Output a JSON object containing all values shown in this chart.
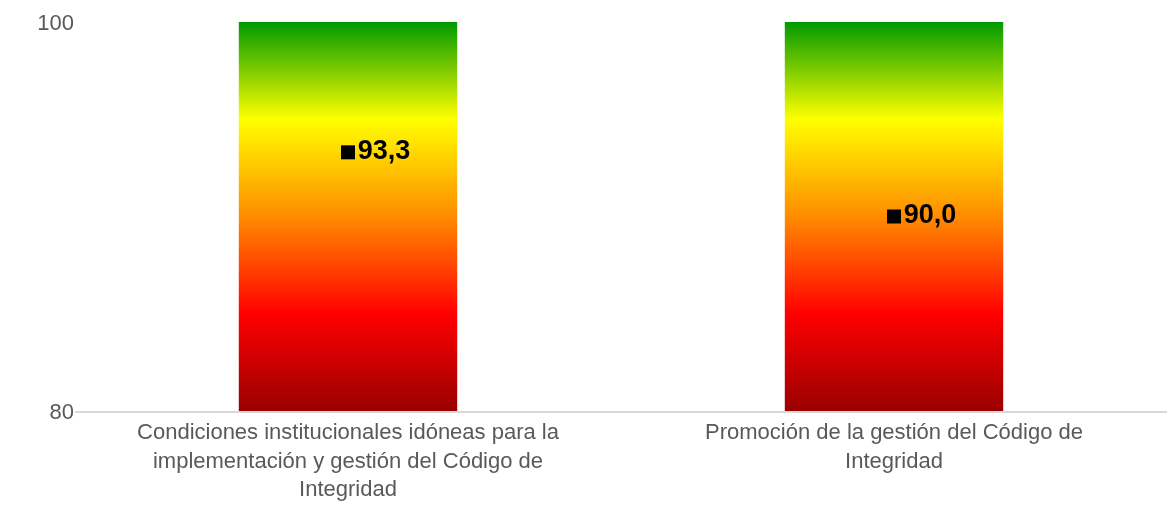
{
  "chart_data": {
    "type": "bar",
    "categories": [
      "Condiciones institucionales idóneas para la implementación y gestión del Código de Integridad",
      "Promoción de la gestión del Código de Integridad"
    ],
    "series": [
      {
        "color": "#ffff00",
        "values": [
          20,
          20
        ],
        "base": [
          80,
          80
        ]
      },
      {
        "type": "scatter",
        "color": "#000000",
        "marker": "square",
        "values": [
          93.3,
          90.0
        ],
        "value_labels": [
          "93,3",
          "90,0"
        ]
      }
    ],
    "ylim": [
      80,
      100
    ],
    "yticks": [
      80,
      100
    ]
  }
}
